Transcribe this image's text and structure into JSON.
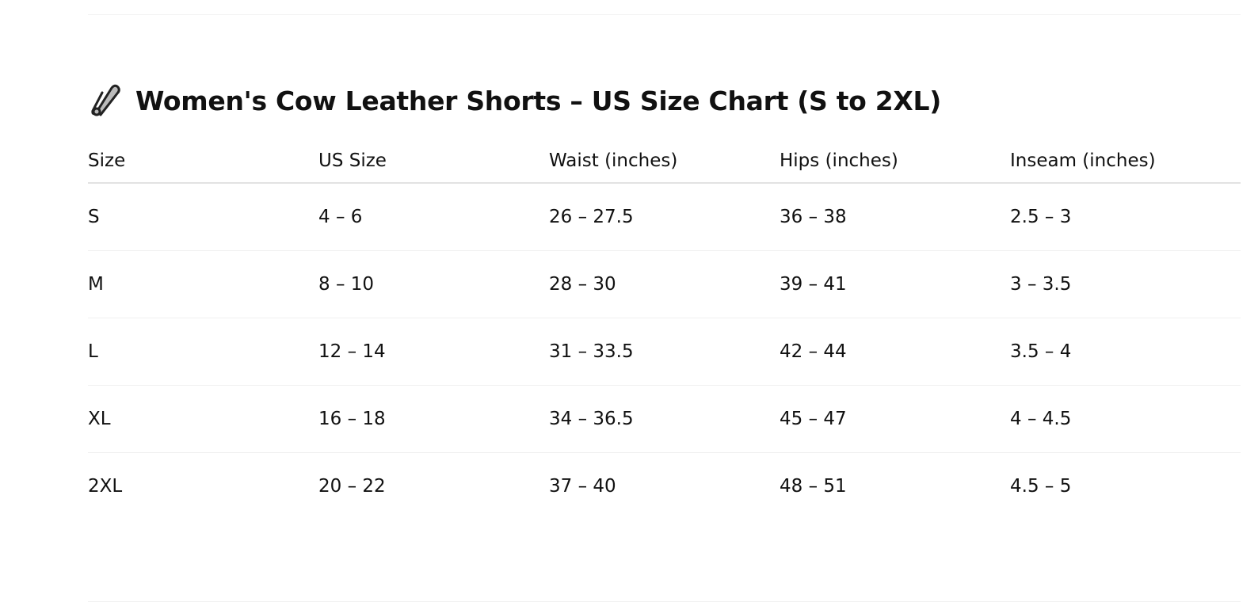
{
  "title": "Women's Cow Leather Shorts – US Size Chart (S to 2XL)",
  "title_icon": "safety-pin-icon",
  "table": {
    "headers": [
      "Size",
      "US Size",
      "Waist (inches)",
      "Hips (inches)",
      "Inseam (inches)"
    ],
    "rows": [
      [
        "S",
        "4 – 6",
        "26 – 27.5",
        "36 – 38",
        "2.5 – 3"
      ],
      [
        "M",
        "8 – 10",
        "28 – 30",
        "39 – 41",
        "3 – 3.5"
      ],
      [
        "L",
        "12 – 14",
        "31 – 33.5",
        "42 – 44",
        "3.5 – 4"
      ],
      [
        "XL",
        "16 – 18",
        "34 – 36.5",
        "45 – 47",
        "4 – 4.5"
      ],
      [
        "2XL",
        "20 – 22",
        "37 – 40",
        "48 – 51",
        "4.5 – 5"
      ]
    ]
  }
}
